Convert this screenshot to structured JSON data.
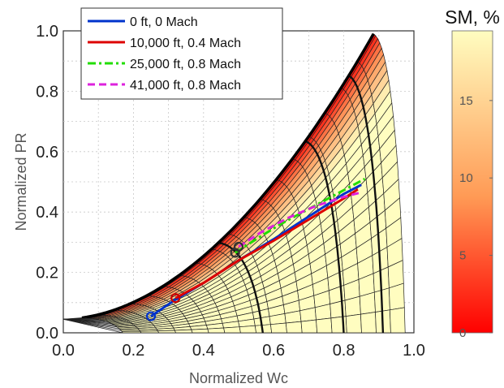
{
  "chart_data": {
    "type": "line",
    "xlabel": "Normalized Wc",
    "ylabel": "Normalized PR",
    "xlim": [
      0.0,
      1.0
    ],
    "ylim": [
      0.0,
      1.0
    ],
    "xticks": [
      "0.0",
      "0.2",
      "0.4",
      "0.6",
      "0.8",
      "1.0"
    ],
    "yticks": [
      "0.0",
      "0.2",
      "0.4",
      "0.6",
      "0.8",
      "1.0"
    ],
    "grid": true,
    "legend_position": "top-left",
    "colorbar": {
      "title": "SM, %",
      "ticks": [
        "0",
        "5",
        "10",
        "15"
      ],
      "range": [
        0,
        19.5
      ],
      "colors": [
        "#ff0000",
        "#fffdc0"
      ]
    },
    "series": [
      {
        "name": "0 ft, 0 Mach",
        "color": "#0033cc",
        "style": "solid",
        "x": [
          0.25,
          0.32,
          0.4,
          0.5,
          0.6,
          0.7,
          0.8,
          0.85
        ],
        "y": [
          0.055,
          0.11,
          0.165,
          0.24,
          0.31,
          0.385,
          0.46,
          0.49
        ]
      },
      {
        "name": "10,000 ft, 0.4 Mach",
        "color": "#dd0000",
        "style": "solid",
        "x": [
          0.32,
          0.4,
          0.5,
          0.6,
          0.7,
          0.8,
          0.84
        ],
        "y": [
          0.115,
          0.165,
          0.24,
          0.305,
          0.375,
          0.445,
          0.475
        ]
      },
      {
        "name": "25,000 ft, 0.8 Mach",
        "color": "#22dd00",
        "style": "dashdot",
        "x": [
          0.49,
          0.55,
          0.62,
          0.7,
          0.78,
          0.86
        ],
        "y": [
          0.265,
          0.31,
          0.36,
          0.41,
          0.46,
          0.51
        ]
      },
      {
        "name": "41,000 ft, 0.8 Mach",
        "color": "#dd22dd",
        "style": "dashed",
        "x": [
          0.5,
          0.56,
          0.64,
          0.72,
          0.8,
          0.85
        ],
        "y": [
          0.285,
          0.33,
          0.38,
          0.42,
          0.45,
          0.465
        ]
      }
    ],
    "operating_points": [
      {
        "x": 0.25,
        "y": 0.055,
        "color": "#0033cc"
      },
      {
        "x": 0.32,
        "y": 0.115,
        "color": "#cc0000"
      },
      {
        "x": 0.5,
        "y": 0.285,
        "color": "#333333"
      },
      {
        "x": 0.49,
        "y": 0.265,
        "color": "#333333"
      }
    ]
  }
}
